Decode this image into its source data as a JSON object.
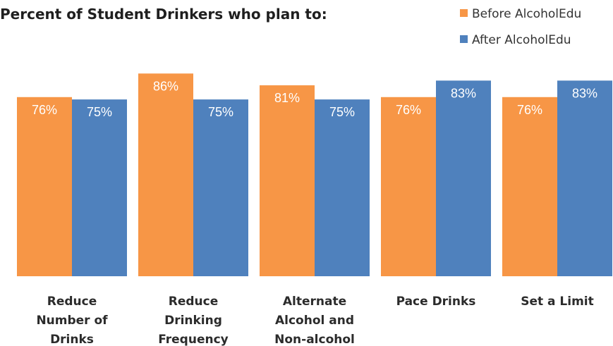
{
  "chart_data": {
    "type": "bar",
    "title": "Percent of Student Drinkers who plan to:",
    "categories": [
      [
        "Reduce",
        "Number of",
        "Drinks"
      ],
      [
        "Reduce",
        "Drinking",
        "Frequency"
      ],
      [
        "Alternate",
        "Alcohol and",
        "Non-alcohol"
      ],
      [
        "Pace Drinks"
      ],
      [
        "Set a Limit"
      ]
    ],
    "series": [
      {
        "name": "Before AlcoholEdu",
        "color": "#F79646",
        "values": [
          76,
          86,
          81,
          76,
          76
        ],
        "labels": [
          "76%",
          "86%",
          "81%",
          "76%",
          "76%"
        ]
      },
      {
        "name": "After AlcoholEdu",
        "color": "#4F81BD",
        "values": [
          75,
          75,
          75,
          83,
          83
        ],
        "labels": [
          "75%",
          "75%",
          "75%",
          "83%",
          "83%"
        ]
      }
    ],
    "ylim": [
      0,
      100
    ],
    "grid": false,
    "legend": "top-right"
  }
}
